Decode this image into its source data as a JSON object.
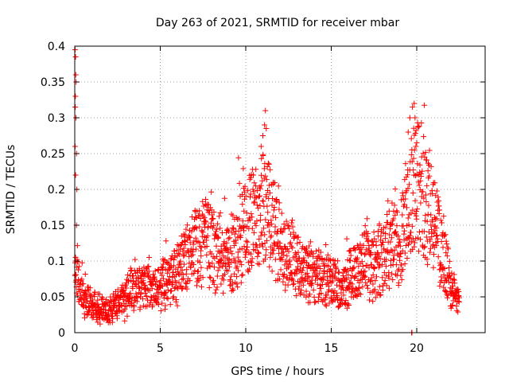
{
  "chart_data": {
    "type": "scatter",
    "title": "Day 263 of 2021, SRMTID for receiver mbar",
    "xlabel": "GPS time / hours",
    "ylabel": "SRMTID / TECUs",
    "xlim": [
      0,
      24
    ],
    "ylim": [
      0,
      0.4
    ],
    "xticks": [
      0,
      5,
      10,
      15,
      20
    ],
    "xtick_labels": [
      "0",
      "5",
      "10",
      "15",
      "20"
    ],
    "yticks": [
      0,
      0.05,
      0.1,
      0.15,
      0.2,
      0.25,
      0.3,
      0.35,
      0.4
    ],
    "ytick_labels": [
      "0",
      "0.05",
      "0.1",
      "0.15",
      "0.2",
      "0.25",
      "0.3",
      "0.35",
      "0.4"
    ],
    "grid": true,
    "marker": "plus",
    "color": "#ff0000",
    "series": [
      {
        "name": "SRMTID",
        "profile": [
          {
            "x": 0.0,
            "y": 0.09
          },
          {
            "x": 0.5,
            "y": 0.05
          },
          {
            "x": 1.0,
            "y": 0.04
          },
          {
            "x": 1.5,
            "y": 0.035
          },
          {
            "x": 2.0,
            "y": 0.03
          },
          {
            "x": 2.5,
            "y": 0.04
          },
          {
            "x": 3.0,
            "y": 0.05
          },
          {
            "x": 3.5,
            "y": 0.07
          },
          {
            "x": 4.0,
            "y": 0.065
          },
          {
            "x": 4.5,
            "y": 0.06
          },
          {
            "x": 5.0,
            "y": 0.065
          },
          {
            "x": 5.5,
            "y": 0.07
          },
          {
            "x": 6.0,
            "y": 0.08
          },
          {
            "x": 6.5,
            "y": 0.1
          },
          {
            "x": 7.0,
            "y": 0.11
          },
          {
            "x": 7.5,
            "y": 0.13
          },
          {
            "x": 8.0,
            "y": 0.12
          },
          {
            "x": 8.5,
            "y": 0.11
          },
          {
            "x": 9.0,
            "y": 0.1
          },
          {
            "x": 9.5,
            "y": 0.12
          },
          {
            "x": 10.0,
            "y": 0.15
          },
          {
            "x": 10.5,
            "y": 0.16
          },
          {
            "x": 11.0,
            "y": 0.175
          },
          {
            "x": 11.5,
            "y": 0.16
          },
          {
            "x": 12.0,
            "y": 0.12
          },
          {
            "x": 12.5,
            "y": 0.11
          },
          {
            "x": 13.0,
            "y": 0.1
          },
          {
            "x": 13.5,
            "y": 0.085
          },
          {
            "x": 14.0,
            "y": 0.08
          },
          {
            "x": 14.5,
            "y": 0.08
          },
          {
            "x": 15.0,
            "y": 0.07
          },
          {
            "x": 15.5,
            "y": 0.06
          },
          {
            "x": 16.0,
            "y": 0.075
          },
          {
            "x": 16.5,
            "y": 0.09
          },
          {
            "x": 17.0,
            "y": 0.1
          },
          {
            "x": 17.5,
            "y": 0.09
          },
          {
            "x": 18.0,
            "y": 0.11
          },
          {
            "x": 18.5,
            "y": 0.13
          },
          {
            "x": 19.0,
            "y": 0.12
          },
          {
            "x": 19.5,
            "y": 0.17
          },
          {
            "x": 19.8,
            "y": 0.2
          },
          {
            "x": 20.0,
            "y": 0.21
          },
          {
            "x": 20.3,
            "y": 0.2
          },
          {
            "x": 20.6,
            "y": 0.18
          },
          {
            "x": 21.0,
            "y": 0.16
          },
          {
            "x": 21.5,
            "y": 0.11
          },
          {
            "x": 22.0,
            "y": 0.06
          },
          {
            "x": 22.3,
            "y": 0.045
          },
          {
            "x": 22.5,
            "y": 0.04
          }
        ],
        "spikes": [
          {
            "x": 0.02,
            "y": 0.395
          },
          {
            "x": 0.05,
            "y": 0.385
          },
          {
            "x": 0.06,
            "y": 0.36
          },
          {
            "x": 0.08,
            "y": 0.35
          },
          {
            "x": 0.04,
            "y": 0.33
          },
          {
            "x": 0.03,
            "y": 0.315
          },
          {
            "x": 0.07,
            "y": 0.3
          },
          {
            "x": 0.02,
            "y": 0.26
          },
          {
            "x": 0.1,
            "y": 0.25
          },
          {
            "x": 0.05,
            "y": 0.22
          },
          {
            "x": 0.12,
            "y": 0.2
          },
          {
            "x": 0.1,
            "y": 0.15
          },
          {
            "x": 0.04,
            "y": 0.1
          },
          {
            "x": 10.9,
            "y": 0.26
          },
          {
            "x": 11.0,
            "y": 0.275
          },
          {
            "x": 11.1,
            "y": 0.29
          },
          {
            "x": 11.15,
            "y": 0.31
          },
          {
            "x": 11.2,
            "y": 0.285
          },
          {
            "x": 19.6,
            "y": 0.3
          },
          {
            "x": 19.75,
            "y": 0.315
          },
          {
            "x": 19.85,
            "y": 0.32
          },
          {
            "x": 19.9,
            "y": 0.3
          },
          {
            "x": 19.5,
            "y": 0.28
          },
          {
            "x": 19.95,
            "y": 0.26
          },
          {
            "x": 19.7,
            "y": 0.0
          },
          {
            "x": 19.72,
            "y": 0.0
          }
        ]
      }
    ]
  }
}
